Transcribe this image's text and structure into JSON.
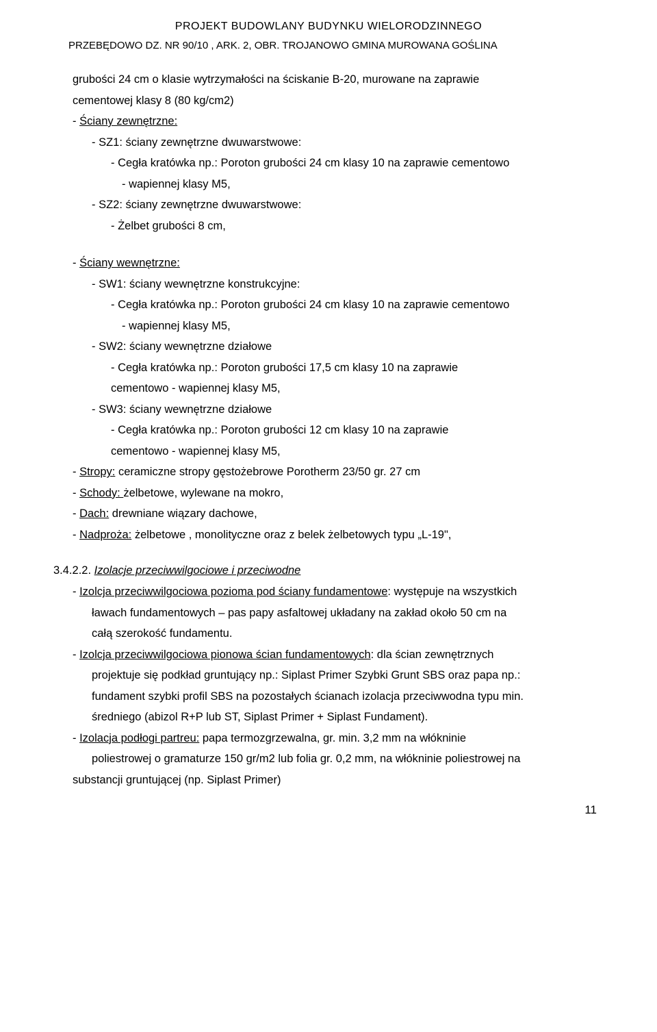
{
  "header": {
    "title": "PROJEKT BUDOWLANY BUDYNKU WIELORODZINNEGO",
    "sub": "PRZEBĘDOWO DZ. NR  90/10 , ARK. 2, OBR. TROJANOWO GMINA MUROWANA GOŚLINA"
  },
  "body": {
    "p0a": "grubości 24 cm o klasie wytrzymałości na ściskanie B-20, murowane na zaprawie",
    "p0b": "cementowej klasy 8 (80 kg/cm2)",
    "l1": "- ",
    "l1u": "Ściany zewnętrzne:",
    "l1a": "- SZ1: ściany zewnętrzne dwuwarstwowe:",
    "l1a1": "- Cegła kratówka np.: Poroton grubości 24 cm klasy 10 na zaprawie cementowo",
    "l1a1b": "- wapiennej klasy M5,",
    "l1b": "- SZ2: ściany zewnętrzne dwuwarstwowe:",
    "l1b1": "- Żelbet grubości 8 cm,",
    "l2": "- ",
    "l2u": "Ściany wewnętrzne:",
    "l2a": "- SW1: ściany wewnętrzne konstrukcyjne:",
    "l2a1": "- Cegła kratówka np.: Poroton grubości 24 cm klasy 10 na zaprawie cementowo",
    "l2a1b": "- wapiennej klasy M5,",
    "l2b": "- SW2: ściany wewnętrzne działowe",
    "l2b1": "- Cegła kratówka np.: Poroton grubości 17,5 cm klasy 10 na zaprawie",
    "l2b1b": "cementowo - wapiennej klasy M5,",
    "l2c": "- SW3: ściany wewnętrzne działowe",
    "l2c1": "- Cegła kratówka np.: Poroton grubości 12 cm klasy 10 na zaprawie",
    "l2c1b": "cementowo - wapiennej klasy M5,",
    "l3": "- ",
    "l3u": "Stropy:",
    "l3r": " ceramiczne stropy gęstożebrowe Porotherm 23/50 gr. 27 cm",
    "l4": "- ",
    "l4u": "Schody: ",
    "l4r": "żelbetowe, wylewane na mokro,",
    "l5": "- ",
    "l5u": "Dach:",
    "l5r": " drewniane wiązary dachowe,",
    "l6": "- ",
    "l6u": "Nadproża:",
    "l6r": " żelbetowe , monolityczne oraz z belek żelbetowych typu „L-19\","
  },
  "section": {
    "num": "3.4.2.2.  ",
    "title": "Izolacje przeciwwilgociowe i przeciwodne",
    "i1": "- ",
    "i1u": "Izolcja przeciwwilgociowa pozioma pod ściany fundamentowe",
    "i1r": ": występuje na wszystkich",
    "i1b": "ławach fundamentowych – pas papy asfaltowej układany na zakład około 50 cm na",
    "i1c": "całą szerokość fundamentu.",
    "i2": "- ",
    "i2u": "Izolcja przeciwwilgociowa pionowa ścian fundamentowych",
    "i2r": ": dla ścian zewnętrznych",
    "i2b": "projektuje się podkład gruntujący np.: Siplast Primer Szybki Grunt SBS oraz papa np.:",
    "i2c": "fundament szybki profil SBS na pozostałych ścianach izolacja przeciwwodna typu min.",
    "i2d": "średniego (abizol R+P lub ST, Siplast  Primer + Siplast Fundament).",
    "i3": "- ",
    "i3u": "Izolacja podłogi partreu:",
    "i3r": " papa termozgrzewalna, gr. min. 3,2 mm na włókninie",
    "i3b": "poliestrowej o gramaturze 150 gr/m2 lub folia gr. 0,2 mm, na włókninie poliestrowej na",
    "i3c": "substancji gruntującej (np. Siplast  Primer)"
  },
  "pageNumber": "11"
}
